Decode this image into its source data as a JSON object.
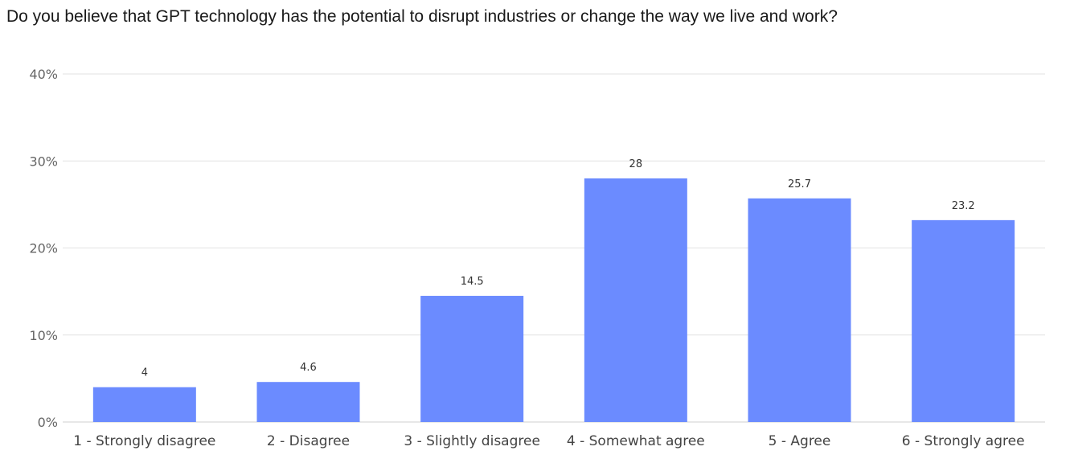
{
  "chart_data": {
    "type": "bar",
    "title": "Do you believe that GPT technology has the potential to disrupt industries or change the way we live and work?",
    "xlabel": "",
    "ylabel": "",
    "categories": [
      "1 - Strongly disagree",
      "2 - Disagree",
      "3 - Slightly disagree",
      "4 - Somewhat agree",
      "5 - Agree",
      "6 - Strongly agree"
    ],
    "values": [
      4,
      4.6,
      14.5,
      28,
      25.7,
      23.2
    ],
    "data_labels": [
      "4",
      "4.6",
      "14.5",
      "28",
      "25.7",
      "23.2"
    ],
    "ylim": [
      0,
      40
    ],
    "yticks": [
      0,
      10,
      20,
      30,
      40
    ],
    "ytick_labels": [
      "0%",
      "10%",
      "20%",
      "30%",
      "40%"
    ],
    "grid": true,
    "legend": "none",
    "bar_color": "#6b8bff"
  }
}
